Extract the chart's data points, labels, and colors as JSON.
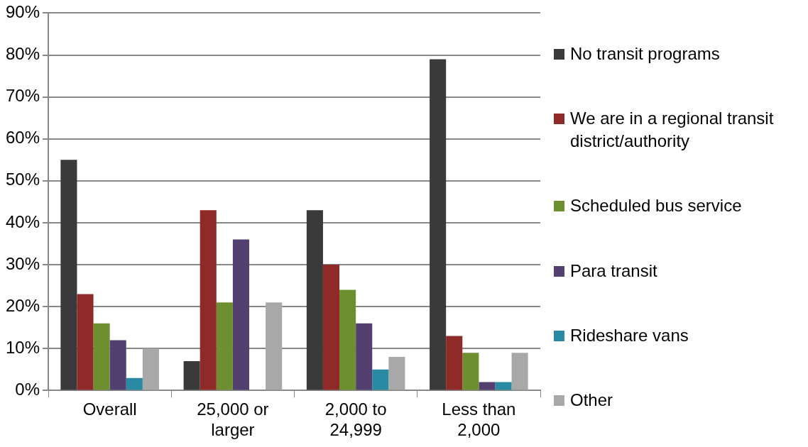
{
  "chart_data": {
    "type": "bar",
    "categories": [
      "Overall",
      "25,000 or larger",
      "2,000 to 24,999",
      "Less than 2,000"
    ],
    "series": [
      {
        "name": "No transit programs",
        "color": "#3a3a3a",
        "values": [
          55,
          7,
          43,
          79
        ]
      },
      {
        "name": "We are in a regional transit district/authority",
        "color": "#8e2a27",
        "values": [
          23,
          43,
          30,
          13
        ]
      },
      {
        "name": "Scheduled bus service",
        "color": "#6e8f2f",
        "values": [
          16,
          21,
          24,
          9
        ]
      },
      {
        "name": "Para transit",
        "color": "#533f70",
        "values": [
          12,
          36,
          16,
          2
        ]
      },
      {
        "name": "Rideshare vans",
        "color": "#2a8aa3",
        "values": [
          3,
          0,
          5,
          2
        ]
      },
      {
        "name": "Other",
        "color": "#a8a8a8",
        "values": [
          10,
          21,
          8,
          9
        ]
      }
    ],
    "ylim": [
      0,
      90
    ],
    "yticks": [
      {
        "value": 0,
        "label": "0%"
      },
      {
        "value": 10,
        "label": "10%"
      },
      {
        "value": 20,
        "label": "20%"
      },
      {
        "value": 30,
        "label": "30%"
      },
      {
        "value": 40,
        "label": "40%"
      },
      {
        "value": 50,
        "label": "50%"
      },
      {
        "value": 60,
        "label": "60%"
      },
      {
        "value": 70,
        "label": "70%"
      },
      {
        "value": 80,
        "label": "80%"
      },
      {
        "value": 90,
        "label": "90%"
      }
    ],
    "grid": "y",
    "legend": "right"
  }
}
